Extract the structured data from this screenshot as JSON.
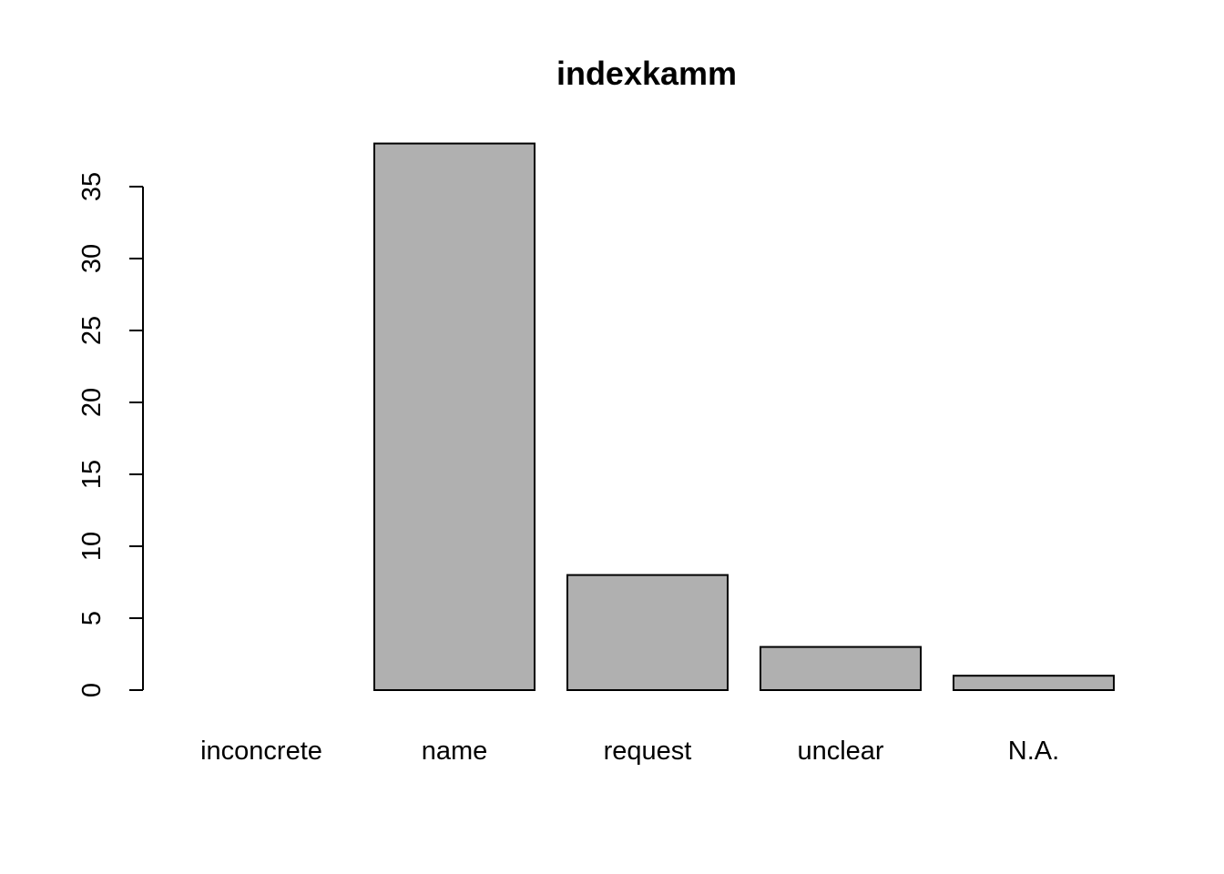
{
  "chart_data": {
    "type": "bar",
    "title": "indexkamm",
    "xlabel": "",
    "ylabel": "",
    "categories": [
      "inconcrete",
      "name",
      "request",
      "unclear",
      "N.A."
    ],
    "values": [
      0,
      38,
      8,
      3,
      1
    ],
    "ylim": [
      0,
      38
    ],
    "yticks": [
      0,
      5,
      10,
      15,
      20,
      25,
      30,
      35
    ],
    "ytick_labels": [
      "0",
      "5",
      "10",
      "15",
      "20",
      "25",
      "30",
      "35"
    ],
    "bar_color": "#b0b0b0",
    "grid": false,
    "legend": "none"
  }
}
